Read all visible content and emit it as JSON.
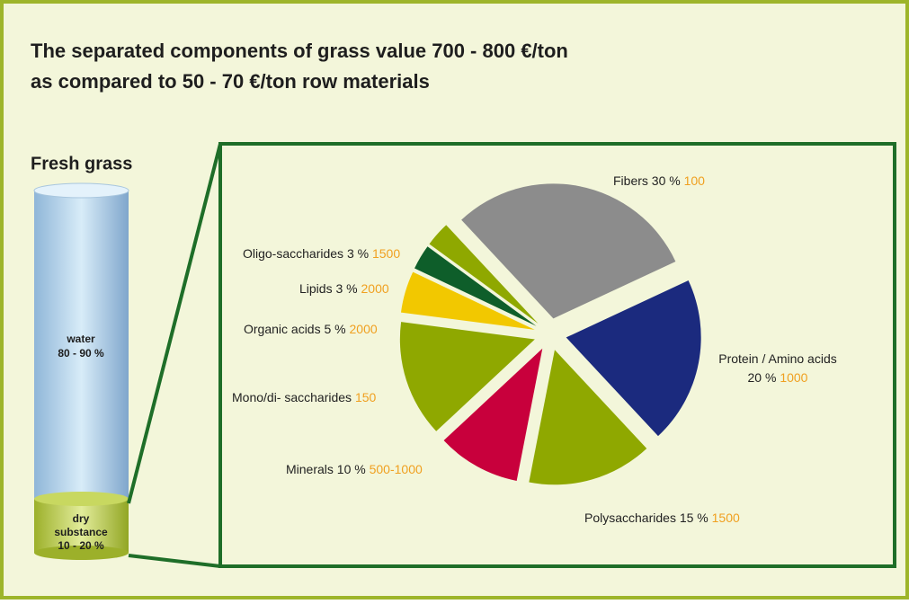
{
  "header": {
    "title_lines": [
      "The separated components of grass value 700 - 800 €/ton",
      "as compared to 50 - 70 €/ton row materials"
    ]
  },
  "cylinder": {
    "title": "Fresh grass",
    "water": [
      "water",
      "80 - 90 %"
    ],
    "dry": [
      "dry",
      "substance",
      "10 - 20 %"
    ]
  },
  "chart_data": {
    "type": "pie",
    "categories": [
      "Fibers",
      "Protein / Amino acids",
      "Polysaccharides",
      "Minerals",
      "Mono/di- saccharides",
      "Organic acids",
      "Lipids",
      "Oligo-saccharides"
    ],
    "values": [
      30,
      20,
      15,
      10,
      14,
      5,
      3,
      3
    ],
    "value_labels": [
      "30 %",
      "20 %",
      "15 %",
      "10 %",
      null,
      "5 %",
      "3 %",
      "3 %"
    ],
    "price_labels": [
      "100",
      "1000",
      "1500",
      "500-1000",
      "150",
      "2000",
      "2000",
      "1500"
    ],
    "colors": [
      "#8c8c8c",
      "#1b2a7e",
      "#8fa800",
      "#c8003c",
      "#8fa800",
      "#f2c800",
      "#0e5e2a",
      "#8fa800"
    ]
  }
}
